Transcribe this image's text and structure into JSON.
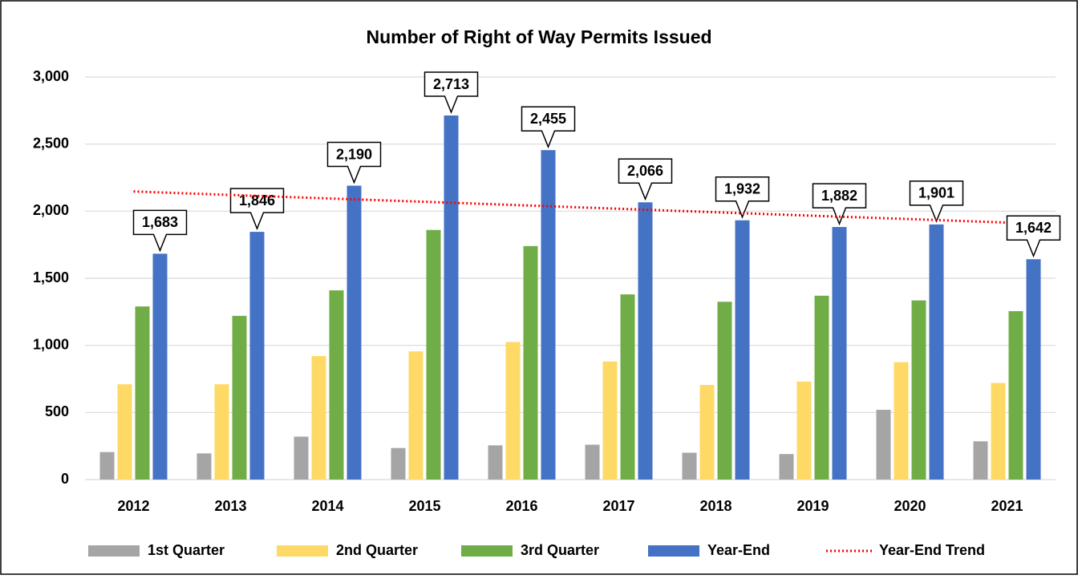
{
  "chart_data": {
    "type": "bar",
    "title": "Number of Right of Way Permits Issued",
    "categories": [
      "2012",
      "2013",
      "2014",
      "2015",
      "2016",
      "2017",
      "2018",
      "2019",
      "2020",
      "2021"
    ],
    "series": [
      {
        "name": "1st Quarter",
        "color": "#a5a5a5",
        "values": [
          205,
          195,
          320,
          235,
          255,
          260,
          200,
          190,
          520,
          285
        ]
      },
      {
        "name": "2nd Quarter",
        "color": "#ffd966",
        "values": [
          710,
          710,
          920,
          955,
          1025,
          880,
          705,
          730,
          875,
          720
        ]
      },
      {
        "name": "3rd Quarter",
        "color": "#70ad47",
        "values": [
          1290,
          1220,
          1410,
          1860,
          1740,
          1380,
          1325,
          1370,
          1335,
          1255
        ]
      },
      {
        "name": "Year-End",
        "color": "#4472c4",
        "values": [
          1683,
          1846,
          2190,
          2713,
          2455,
          2066,
          1932,
          1882,
          1901,
          1642
        ],
        "value_labels": [
          "1,683",
          "1,846",
          "2,190",
          "2,713",
          "2,455",
          "2,066",
          "1,932",
          "1,882",
          "1,901",
          "1,642"
        ]
      },
      {
        "name": "Year-End Trend",
        "color": "#ff0000",
        "type": "line",
        "dotted": true,
        "values": [
          2147,
          2121,
          2095,
          2070,
          2044,
          2018,
          1992,
          1966,
          1941,
          1915
        ]
      }
    ],
    "ylim": [
      0,
      3000
    ],
    "yticks": [
      0,
      {
        "value": 500,
        "label": "500"
      },
      {
        "value": 1000,
        "label": "1,000"
      },
      {
        "value": 1500,
        "label": "1,500"
      },
      {
        "value": 2000,
        "label": "2,000"
      },
      {
        "value": 2500,
        "label": "2,500"
      },
      {
        "value": 3000,
        "label": "3,000"
      }
    ],
    "grid": true,
    "legend": "bottom"
  }
}
